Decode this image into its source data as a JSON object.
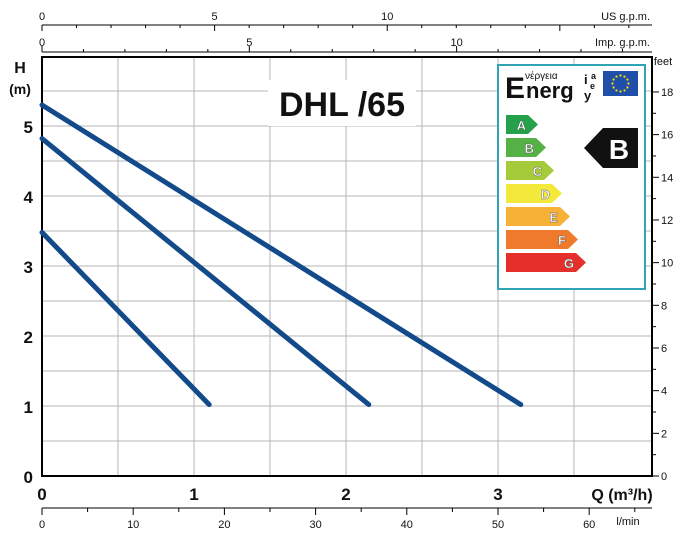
{
  "chart_data": {
    "type": "line",
    "title": "DHL /65",
    "xlabel": "Q (m³/h)",
    "ylabel": "H\n(m)",
    "xlim": [
      0,
      4
    ],
    "ylim": [
      0,
      5.7
    ],
    "x_ticks": [
      "0",
      "1",
      "2",
      "3"
    ],
    "y_ticks": [
      "0",
      "1",
      "2",
      "3",
      "4",
      "5"
    ],
    "top_axis_us": {
      "unit": "US g.p.m.",
      "ticks": [
        "0",
        "5",
        "10"
      ],
      "values": [
        0,
        5,
        10
      ]
    },
    "top_axis_imp": {
      "unit": "Imp. g.p.m.",
      "ticks": [
        "0",
        "5",
        "10"
      ],
      "values": [
        0,
        5,
        10
      ]
    },
    "bottom_axis_lmin": {
      "unit": "l/min",
      "ticks": [
        "0",
        "10",
        "20",
        "30",
        "40",
        "50",
        "60"
      ],
      "values": [
        0,
        10,
        20,
        30,
        40,
        50,
        60
      ]
    },
    "right_axis_feet": {
      "unit": "feet",
      "ticks": [
        "0",
        "2",
        "4",
        "6",
        "8",
        "10",
        "12",
        "14",
        "16",
        "18"
      ],
      "values": [
        0,
        2,
        4,
        6,
        8,
        10,
        12,
        14,
        16,
        18
      ]
    },
    "grid": true,
    "series": [
      {
        "x": [
          0,
          1.1
        ],
        "y": [
          3.48,
          1.02
        ]
      },
      {
        "x": [
          0,
          2.15
        ],
        "y": [
          4.82,
          1.02
        ]
      },
      {
        "x": [
          0,
          3.15
        ],
        "y": [
          5.3,
          1.02
        ]
      }
    ],
    "series_color": "#134a8a"
  },
  "energy_label": {
    "wordmark": "Energ",
    "greek": "νέργεια",
    "suffix_top": "ia",
    "suffix_bottom": "ey",
    "classes": [
      "A",
      "B",
      "C",
      "D",
      "E",
      "F",
      "G"
    ],
    "class_colors": [
      "#24a14a",
      "#55b045",
      "#a5cb3b",
      "#f3e93a",
      "#f7b137",
      "#ef7a2c",
      "#e52f2b"
    ],
    "rating": "B",
    "border_color": "#30a3b5"
  }
}
